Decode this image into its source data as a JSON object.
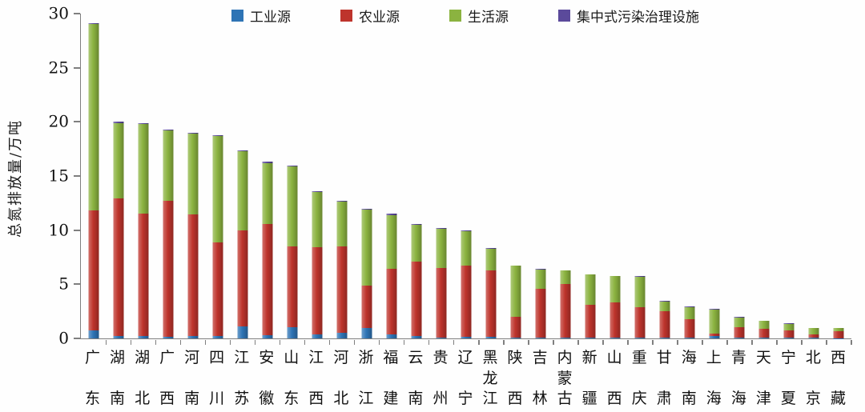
{
  "chart_data": {
    "type": "bar",
    "stacked": true,
    "title": "",
    "ylabel": "总氮排放量/万吨",
    "xlabel": "",
    "ylim": [
      0,
      30
    ],
    "yticks": [
      0,
      5,
      10,
      15,
      20,
      25,
      30
    ],
    "grid": false,
    "legend_position": "top",
    "axis_color": "#7f7f7f",
    "text_color": "#1a1a1a",
    "categories": [
      "广东",
      "湖南",
      "湖北",
      "广西",
      "河南",
      "四川",
      "江苏",
      "安徽",
      "山东",
      "江西",
      "河北",
      "浙江",
      "福建",
      "云南",
      "贵州",
      "辽宁",
      "黑龙江",
      "陕西",
      "吉林",
      "内蒙古",
      "新疆",
      "山西",
      "重庆",
      "甘肃",
      "海南",
      "上海",
      "青海",
      "天津",
      "宁夏",
      "北京",
      "西藏"
    ],
    "series": [
      {
        "name": "工业源",
        "color": "#2E74B5",
        "values": [
          0.75,
          0.2,
          0.25,
          0.15,
          0.25,
          0.2,
          1.1,
          0.3,
          1.05,
          0.35,
          0.5,
          0.95,
          0.35,
          0.2,
          0.1,
          0.15,
          0.15,
          0.1,
          0.1,
          0.1,
          0.05,
          0.1,
          0.1,
          0.05,
          0.1,
          0.25,
          0.05,
          0.05,
          0.05,
          0.05,
          0.02
        ]
      },
      {
        "name": "农业源",
        "color": "#BE342C",
        "values": [
          11.1,
          12.7,
          11.3,
          12.55,
          11.2,
          8.7,
          8.9,
          10.3,
          7.45,
          8.05,
          8.0,
          3.95,
          6.05,
          6.9,
          6.4,
          6.55,
          6.15,
          1.9,
          4.5,
          4.9,
          3.05,
          3.2,
          2.8,
          2.5,
          1.65,
          0.2,
          0.95,
          0.85,
          0.7,
          0.3,
          0.63
        ]
      },
      {
        "name": "生活源",
        "color": "#8BB340",
        "values": [
          17.2,
          7.0,
          8.25,
          6.5,
          7.45,
          9.8,
          7.3,
          5.6,
          7.4,
          5.1,
          4.1,
          7.0,
          5.0,
          3.4,
          3.6,
          3.2,
          2.0,
          4.7,
          1.75,
          1.25,
          2.8,
          2.45,
          2.8,
          0.85,
          1.15,
          2.2,
          0.95,
          0.7,
          0.6,
          0.6,
          0.3
        ]
      },
      {
        "name": "集中式污染治理设施",
        "color": "#5B4A9B",
        "values": [
          0.1,
          0.1,
          0.1,
          0.1,
          0.1,
          0.1,
          0.1,
          0.1,
          0.1,
          0.1,
          0.1,
          0.1,
          0.1,
          0.1,
          0.1,
          0.1,
          0.05,
          0.05,
          0.05,
          0.05,
          0.05,
          0.05,
          0.05,
          0.05,
          0.05,
          0.05,
          0.05,
          0.05,
          0.05,
          0.05,
          0.03
        ]
      }
    ]
  }
}
